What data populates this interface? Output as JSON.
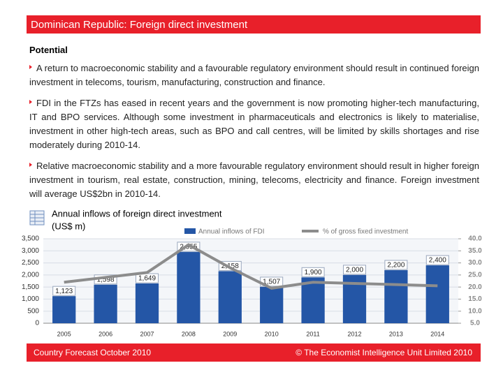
{
  "header": {
    "title": "Dominican Republic: Foreign direct investment"
  },
  "section": {
    "heading": "Potential",
    "bullets": [
      "A return to macroeconomic stability and a favourable regulatory environment should result in continued foreign investment in telecoms, tourism, manufacturing, construction and finance.",
      "FDI in the FTZs has eased in recent years and the government is now promoting higher-tech manufacturing, IT and BPO services. Although some investment in pharmaceuticals and electronics is likely to materialise, investment in other high-tech areas, such as BPO and call centres, will be limited by skills shortages and rise moderately during 2010-14.",
      "Relative macroeconomic stability and a more favourable regulatory environment should result in higher foreign investment in tourism, real estate, construction, mining, telecoms, electricity and finance. Foreign investment will average US$2bn in 2010-14."
    ]
  },
  "chart_data": {
    "type": "bar-line",
    "title": "Annual inflows of foreign direct investment",
    "subtitle": "(US$ m)",
    "categories": [
      "2005",
      "2006",
      "2007",
      "2008",
      "2009",
      "2010",
      "2011",
      "2012",
      "2013",
      "2014"
    ],
    "series": [
      {
        "name": "Annual inflows of FDI",
        "color": "#2456a6",
        "type": "bar",
        "values": [
          1123,
          1598,
          1649,
          2955,
          2158,
          1507,
          1900,
          2000,
          2200,
          2400
        ],
        "value_labels": [
          "1,123",
          "1,598",
          "1,649",
          "2,955",
          "2,158",
          "1,507",
          "1,900",
          "2,000",
          "2,200",
          "2,400"
        ]
      },
      {
        "name": "% of gross fixed investment",
        "color": "#8c8c8c",
        "type": "line",
        "axis": "y2",
        "values": [
          22,
          24,
          26,
          37.5,
          28,
          19.5,
          22,
          21.5,
          21,
          20.5
        ]
      }
    ],
    "ylim": [
      0,
      3500
    ],
    "yticks": [
      0,
      500,
      {
        "value": 1000,
        "label": "1,000"
      },
      {
        "value": 1500,
        "label": "1,500"
      },
      {
        "value": 2000,
        "label": "2,000"
      },
      {
        "value": 2500,
        "label": "2,500"
      },
      {
        "value": 3000,
        "label": "3,000"
      },
      {
        "value": 3500,
        "label": "3,500"
      }
    ],
    "y2lim": [
      5,
      40
    ],
    "y2ticks": [
      {
        "value": 5,
        "label": "5.0"
      },
      {
        "value": 10,
        "label": "10.0"
      },
      {
        "value": 15,
        "label": "15.0"
      },
      {
        "value": 20,
        "label": "20.0"
      },
      {
        "value": 25,
        "label": "25.0"
      },
      {
        "value": 30,
        "label": "30.0"
      },
      {
        "value": 35,
        "label": "35.0"
      },
      {
        "value": 40,
        "label": "40.0"
      }
    ]
  },
  "footer": {
    "left": "Country Forecast October 2010",
    "right": "© The Economist Intelligence Unit Limited 2010"
  }
}
